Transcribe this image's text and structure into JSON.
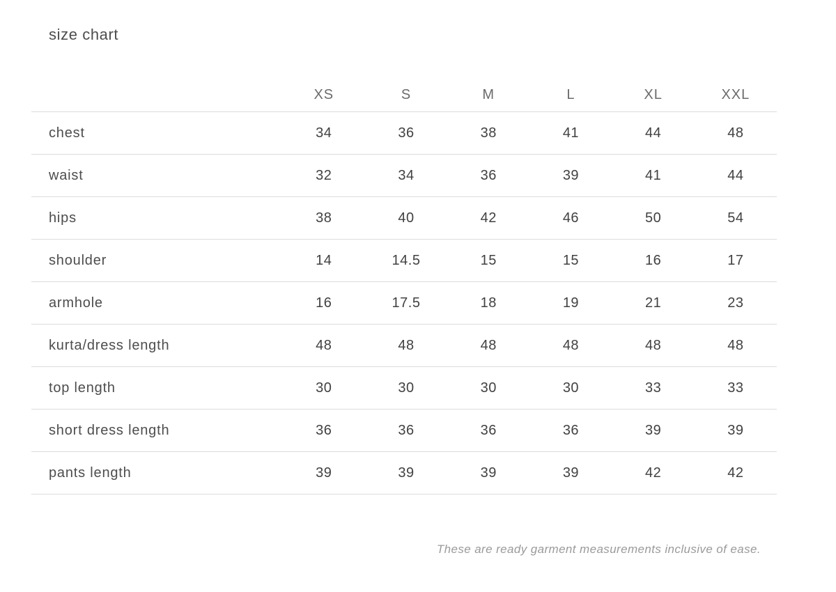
{
  "title": "size chart",
  "footnote": "These are ready garment measurements inclusive of ease.",
  "colors": {
    "background": "#ffffff",
    "title_text": "#4d4d4d",
    "header_text": "#6b6b6b",
    "label_text": "#4d4d4d",
    "value_text": "#414141",
    "divider": "#dcdcdc",
    "footnote_text": "#9a9a9a"
  },
  "chart_data": {
    "type": "table",
    "title": "size chart",
    "columns": [
      "XS",
      "S",
      "M",
      "L",
      "XL",
      "XXL"
    ],
    "rows": [
      {
        "label": "chest",
        "values": [
          "34",
          "36",
          "38",
          "41",
          "44",
          "48"
        ]
      },
      {
        "label": "waist",
        "values": [
          "32",
          "34",
          "36",
          "39",
          "41",
          "44"
        ]
      },
      {
        "label": "hips",
        "values": [
          "38",
          "40",
          "42",
          "46",
          "50",
          "54"
        ]
      },
      {
        "label": "shoulder",
        "values": [
          "14",
          "14.5",
          "15",
          "15",
          "16",
          "17"
        ]
      },
      {
        "label": "armhole",
        "values": [
          "16",
          "17.5",
          "18",
          "19",
          "21",
          "23"
        ]
      },
      {
        "label": "kurta/dress length",
        "values": [
          "48",
          "48",
          "48",
          "48",
          "48",
          "48"
        ]
      },
      {
        "label": "top length",
        "values": [
          "30",
          "30",
          "30",
          "30",
          "33",
          "33"
        ]
      },
      {
        "label": "short dress length",
        "values": [
          "36",
          "36",
          "36",
          "36",
          "39",
          "39"
        ]
      },
      {
        "label": "pants length",
        "values": [
          "39",
          "39",
          "39",
          "39",
          "42",
          "42"
        ]
      }
    ],
    "layout": {
      "grid": "horizontal-dividers-only",
      "header_position": "top",
      "footnote_alignment": "right"
    }
  }
}
